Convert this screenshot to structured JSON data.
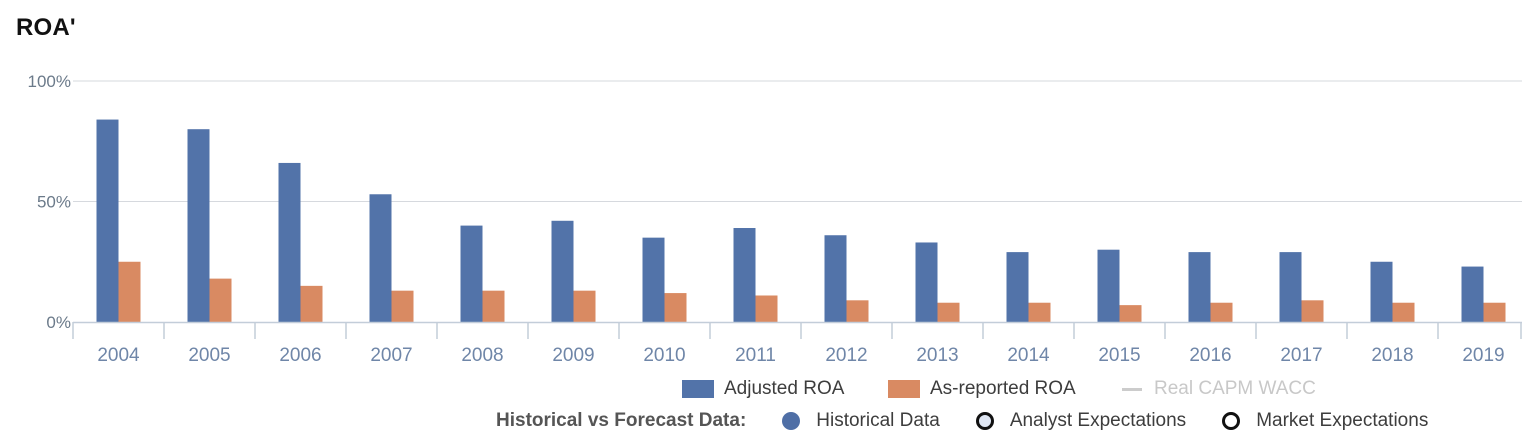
{
  "title": "ROA'",
  "colors": {
    "adjusted": "#5273a9",
    "reported": "#d98a62",
    "wacc": "#cccccc",
    "grid": "#d6d9de",
    "axis": "#c3cdd9",
    "historical_dot": "#4f6fa6"
  },
  "chart_data": {
    "type": "bar",
    "title": "ROA'",
    "categories": [
      "2004",
      "2005",
      "2006",
      "2007",
      "2008",
      "2009",
      "2010",
      "2011",
      "2012",
      "2013",
      "2014",
      "2015",
      "2016",
      "2017",
      "2018",
      "2019"
    ],
    "series": [
      {
        "name": "Adjusted ROA",
        "values": [
          84,
          80,
          66,
          53,
          40,
          42,
          35,
          39,
          36,
          33,
          29,
          30,
          29,
          29,
          25,
          23
        ]
      },
      {
        "name": "As-reported ROA",
        "values": [
          25,
          18,
          15,
          13,
          13,
          13,
          12,
          11,
          9,
          8,
          8,
          7,
          8,
          9,
          8,
          8
        ]
      }
    ],
    "ylim": [
      0,
      100
    ],
    "yticks": [
      {
        "value": 0,
        "label": "0%"
      },
      {
        "value": 50,
        "label": "50%"
      },
      {
        "value": 100,
        "label": "100%"
      }
    ],
    "grid": true,
    "legend_position": "bottom"
  },
  "legend": {
    "adjusted": "Adjusted ROA",
    "reported": "As-reported ROA",
    "wacc": "Real CAPM WACC"
  },
  "forecast_legend": {
    "label": "Historical vs Forecast Data:",
    "historical": "Historical Data",
    "analyst": "Analyst Expectations",
    "market": "Market Expectations"
  }
}
